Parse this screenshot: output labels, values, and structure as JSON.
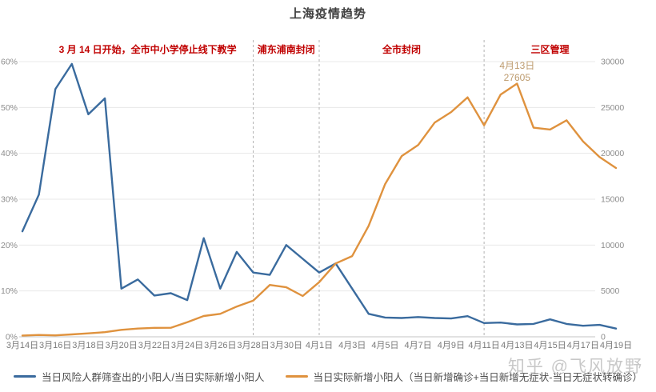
{
  "title": "上海疫情趋势",
  "watermark": "知乎 @飞风放野",
  "legend": [
    {
      "label": "当日风险人群筛查出的小阳人/当日实际新增小阳人",
      "color": "#3a6b9e"
    },
    {
      "label": "当日实际新增小阳人（当日新增确诊+当日新增无症状-当日无症状转确诊）",
      "color": "#df923e"
    }
  ],
  "colors": {
    "blue_series": "#3a6b9e",
    "orange_series": "#df923e",
    "event_red": "#c00000",
    "peak_annotation": "#bd9b6e",
    "grid": "#e8e8e8",
    "axis_line": "#c6c6c6",
    "dashed_line": "#b3b3b3",
    "tick_text": "#8c8c8c"
  },
  "chart_data": {
    "type": "line",
    "title": "上海疫情趋势",
    "grid": true,
    "legend_position": "bottom",
    "x": [
      "3月14日",
      "3月15日",
      "3月16日",
      "3月17日",
      "3月18日",
      "3月19日",
      "3月20日",
      "3月21日",
      "3月22日",
      "3月23日",
      "3月24日",
      "3月25日",
      "3月26日",
      "3月27日",
      "3月28日",
      "3月29日",
      "3月30日",
      "3月31日",
      "4月1日",
      "4月2日",
      "4月3日",
      "4月4日",
      "4月5日",
      "4月6日",
      "4月7日",
      "4月8日",
      "4月9日",
      "4月10日",
      "4月11日",
      "4月12日",
      "4月13日",
      "4月14日",
      "4月15日",
      "4月16日",
      "4月17日",
      "4月18日",
      "4月19日"
    ],
    "x_tick_labels": [
      "3月14日",
      "3月16日",
      "3月18日",
      "3月20日",
      "3月22日",
      "3月24日",
      "3月26日",
      "3月28日",
      "3月30日",
      "4月1日",
      "4月3日",
      "4月5日",
      "4月7日",
      "4月9日",
      "4月11日",
      "4月13日",
      "4月15日",
      "4月17日",
      "4月19日"
    ],
    "left_axis": {
      "ticks": [
        "0%",
        "10%",
        "20%",
        "30%",
        "40%",
        "50%",
        "60%"
      ],
      "range": [
        0,
        60
      ],
      "unit": "%"
    },
    "right_axis": {
      "ticks": [
        "0",
        "5000",
        "10000",
        "15000",
        "20000",
        "25000",
        "30000"
      ],
      "range": [
        0,
        30000
      ]
    },
    "series": [
      {
        "name": "当日风险人群筛查出的小阳人/当日实际新增小阳人",
        "axis": "left",
        "color": "#3a6b9e",
        "values": [
          23,
          31,
          54,
          59.5,
          48.5,
          52,
          10.5,
          12.5,
          9,
          9.5,
          8,
          21.5,
          10.5,
          18.5,
          14,
          13.5,
          20,
          17,
          14,
          16,
          10.5,
          5,
          4.2,
          4.1,
          4.3,
          4.1,
          4,
          4.5,
          3,
          3.1,
          2.7,
          2.8,
          3.8,
          2.8,
          2.4,
          2.6,
          1.8
        ]
      },
      {
        "name": "当日实际新增小阳人（当日新增确诊+当日新增无症状-当日无症状转确诊）",
        "axis": "right",
        "color": "#df923e",
        "values": [
          140,
          200,
          160,
          260,
          375,
          510,
          760,
          900,
          980,
          985,
          1600,
          2270,
          2500,
          3300,
          3950,
          5650,
          5400,
          4450,
          5960,
          8000,
          8800,
          12100,
          16650,
          19700,
          20900,
          23350,
          24500,
          26100,
          23050,
          26400,
          27605,
          22800,
          22600,
          23600,
          21300,
          19600,
          18400
        ]
      }
    ],
    "events": [
      {
        "label": "3 月 14 日开始，全市中小学停止线下教学",
        "line_index": null,
        "label_center_index": 7.6
      },
      {
        "label": "浦东浦南封闭",
        "line_index": 14,
        "label_center_index": 16
      },
      {
        "label": "全市封闭",
        "line_index": 18,
        "label_center_index": 23
      },
      {
        "label": "三区管理",
        "line_index": 28,
        "label_center_index": 32
      }
    ],
    "point_annotation": {
      "date_index": 30,
      "lines": [
        "4月13日",
        "27605"
      ],
      "value": 27605
    }
  }
}
